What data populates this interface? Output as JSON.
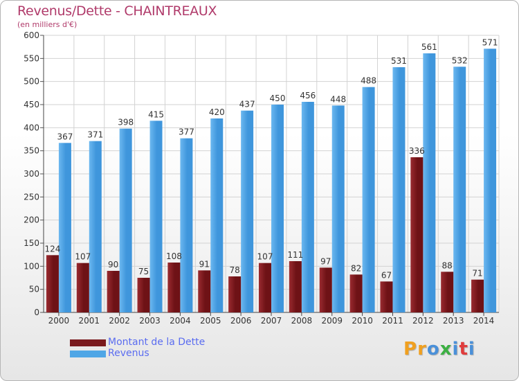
{
  "header": {
    "title": "Revenus/Dette - CHAINTREAUX",
    "subtitle": "(en milliers d'€)"
  },
  "legend": {
    "items": [
      {
        "label": "Montant de la Dette",
        "color": "#7a1a1e"
      },
      {
        "label": "Revenus",
        "color": "#4fa6e6"
      }
    ]
  },
  "logo": {
    "text": "Proxiti",
    "colors": [
      "#f0a020",
      "#f0a020",
      "#4a90d9",
      "#3cb043",
      "#4a90d9",
      "#e03c3c",
      "#4a90d9"
    ]
  },
  "chart_data": {
    "type": "bar",
    "categories": [
      "2000",
      "2001",
      "2002",
      "2003",
      "2004",
      "2005",
      "2006",
      "2007",
      "2008",
      "2009",
      "2010",
      "2011",
      "2012",
      "2013",
      "2014"
    ],
    "series": [
      {
        "name": "Montant de la Dette",
        "color": "#7a1a1e",
        "values": [
          124,
          107,
          90,
          75,
          108,
          91,
          78,
          107,
          111,
          97,
          82,
          67,
          336,
          88,
          71
        ]
      },
      {
        "name": "Revenus",
        "color": "#4fa6e6",
        "values": [
          367,
          371,
          398,
          415,
          377,
          420,
          437,
          450,
          456,
          448,
          488,
          531,
          561,
          532,
          571
        ]
      }
    ],
    "ylim": [
      0,
      600
    ],
    "yticks": [
      0,
      50,
      100,
      150,
      200,
      250,
      300,
      350,
      400,
      450,
      500,
      550,
      600
    ],
    "grid": true,
    "legend_position": "bottom-left"
  }
}
